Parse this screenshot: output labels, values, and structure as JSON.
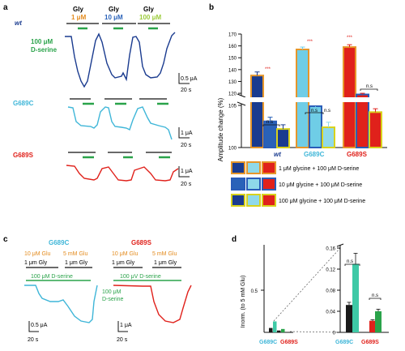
{
  "panels": {
    "a": "a",
    "b": "b",
    "c": "c",
    "d": "d"
  },
  "colors": {
    "wt": "#1a3b8f",
    "g689c": "#3fb6d8",
    "g689s": "#e0211b",
    "green": "#2aa34a",
    "gly1": "#e38b1e",
    "gly10": "#2a62b8",
    "gly100": "#9ccc3c",
    "orange_border": "#e6962a",
    "blue_border": "#2a5cb8",
    "yellow_border": "#d8d21c"
  },
  "panel_a": {
    "wt_label": "wt",
    "g689c_label": "G689C",
    "g689s_label": "G689S",
    "dserine_label_1": "100 μM",
    "dserine_label_2": "D-serine",
    "gly_header": [
      "Gly",
      "Gly",
      "Gly"
    ],
    "gly_conc": [
      "1 μM",
      "10 μM",
      "100 μM"
    ],
    "scale_wt": [
      "0.5 μA",
      "20 s"
    ],
    "scale_c": [
      "1 μA",
      "20 s"
    ],
    "scale_s": [
      "1 μA",
      "20 s"
    ]
  },
  "panel_b": {
    "ylabel": "Amplitude change (%)",
    "yticks_upper": [
      "170",
      "160",
      "150",
      "140",
      "130",
      "120"
    ],
    "yticks_lower": [
      "105",
      "100"
    ],
    "xlabels": [
      "wt",
      "G689C",
      "G689S"
    ],
    "sig": [
      "***",
      "n.s",
      "n.s",
      "***",
      "n.s",
      "***",
      "n.s"
    ],
    "legend": [
      "1 μM glycine + 100 μM D-serine",
      "10 μM glycine + 100 μM D-serine",
      "100 μM glycine + 100 μM D-serine"
    ]
  },
  "panel_c": {
    "g689c_title": "G689C",
    "g689s_title": "G689S",
    "c_left_1": "10 μM Glu",
    "c_left_2": "1 μm Gly",
    "c_right_1": "5 mM Glu",
    "c_right_2": "1 μm Gly",
    "s_left_1": "10 μM Glu",
    "s_left_2": "1 μm Gly",
    "s_right_1": "5 mM Glu",
    "s_right_2": "1 μm Gly",
    "dserine_c": "100 μM D-serine",
    "dserine_s": "100 μV D-serine",
    "dserine_side_1": "100 μM",
    "dserine_side_2": "D-serine",
    "scale_c": [
      "0.5 μA",
      "20 s"
    ],
    "scale_s": [
      "1 μA",
      "20 s"
    ]
  },
  "panel_d": {
    "ylabel": "Inorm. (to 5 mM Glu)",
    "yticks_main": [
      "0.5"
    ],
    "yticks_inset": [
      "0.16",
      "0.12",
      "0.08",
      "0.04",
      "0"
    ],
    "xlabels": [
      "G689C",
      "G689S"
    ],
    "sig": [
      "n.s",
      "n.s"
    ]
  },
  "chart_data": [
    {
      "type": "bar",
      "title": "",
      "ylabel": "Amplitude change (%)",
      "categories": [
        "wt",
        "G689C",
        "G689S"
      ],
      "axis_break": [
        105,
        118
      ],
      "ylim": [
        100,
        170
      ],
      "series": [
        {
          "name": "1 μM glycine + 100 μM D-serine",
          "values": [
            135,
            157,
            159
          ],
          "errors": [
            3,
            2,
            2
          ]
        },
        {
          "name": "10 μM glycine + 100 μM D-serine",
          "values": [
            103.1,
            104.9,
            119
          ],
          "errors": [
            0.5,
            1.2,
            1
          ]
        },
        {
          "name": "100 μM glycine + 100 μM D-serine",
          "values": [
            102.2,
            102.4,
            104.2
          ],
          "errors": [
            0.5,
            0.6,
            0.4
          ]
        }
      ]
    },
    {
      "type": "bar",
      "title": "",
      "ylabel": "Inorm. (to 5 mM Glu)",
      "categories": [
        "G689C",
        "G689S"
      ],
      "ylim": [
        0,
        0.16
      ],
      "series": [
        {
          "name": "",
          "values": [
            0.052,
            0.022
          ],
          "errors": [
            0.005,
            0.002
          ]
        },
        {
          "name": "",
          "values": [
            0.13,
            0.04
          ],
          "errors": [
            0.02,
            0.004
          ]
        }
      ]
    }
  ]
}
